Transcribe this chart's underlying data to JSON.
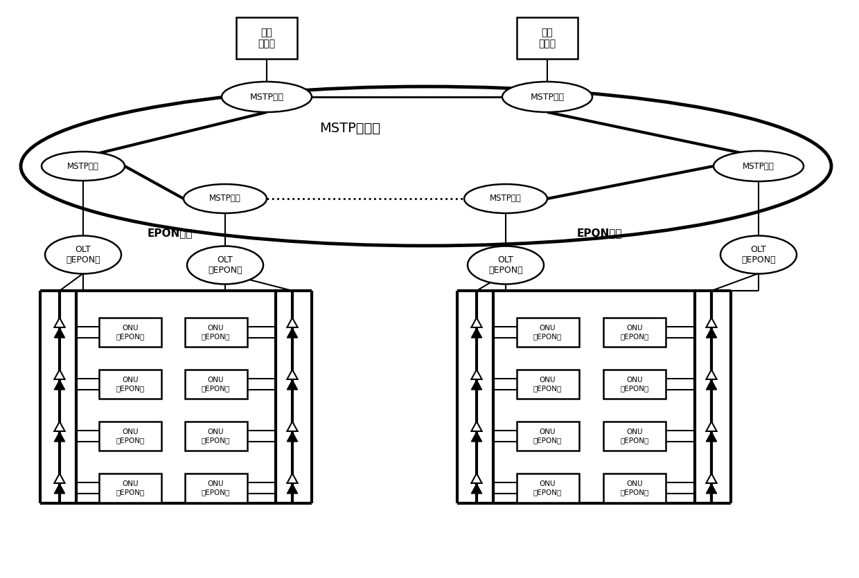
{
  "bg_color": "#ffffff",
  "line_color": "#000000",
  "text_color": "#000000",
  "title": "MSTP传输环",
  "core_switch_label": "核心\n交换机",
  "mstp_label": "MSTP设备",
  "olt_label": "OLT\n（EPON）",
  "onu_label": "ONU\n（EPON）",
  "epon_label": "EPON组网",
  "figsize": [
    12.4,
    8.35
  ],
  "dpi": 100
}
